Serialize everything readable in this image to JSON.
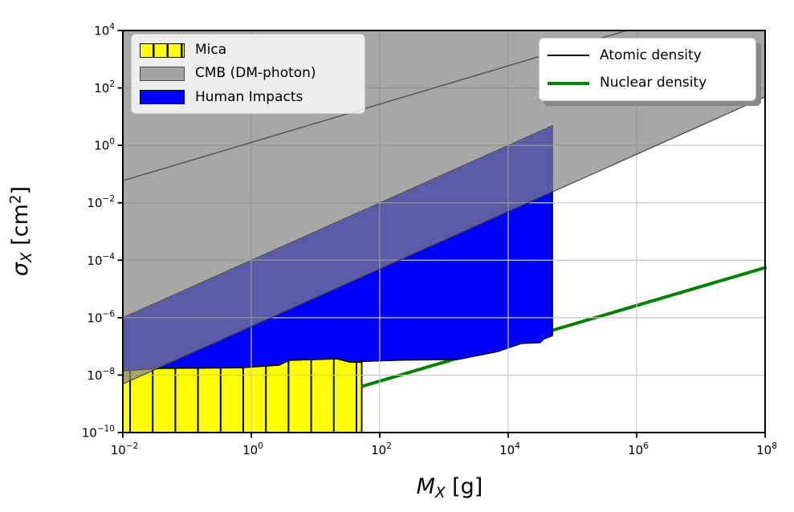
{
  "chart_data": {
    "type": "area",
    "title": "",
    "xlabel": {
      "var": "M",
      "sub": "X",
      "unit": "[g]"
    },
    "ylabel": {
      "var": "σ",
      "sub": "X",
      "unit_pre": "[cm",
      "unit_exp": "2",
      "unit_post": "]"
    },
    "x_axis": {
      "scale": "log",
      "base_label": "10",
      "range_exponents": [
        -2,
        8
      ],
      "tick_exponents": [
        -2,
        0,
        2,
        4,
        6,
        8
      ]
    },
    "y_axis": {
      "scale": "log",
      "base_label": "10",
      "range_exponents": [
        -10,
        4
      ],
      "tick_exponents": [
        4,
        2,
        0,
        -2,
        -4,
        -6,
        -8,
        -10
      ]
    },
    "grid": {
      "show": true,
      "color": "#c6c6c6",
      "x_exponents": [
        0,
        2,
        4,
        6
      ],
      "y_exponents": [
        2,
        0,
        -2,
        -4,
        -6,
        -8
      ]
    },
    "regions": [
      {
        "name": "Mica",
        "fill": "#ffff00",
        "stroke": "#000000",
        "stroke_width": 1.8,
        "hatch": "vertical",
        "hatch_color": "#000000",
        "hatch_spacing_px": 28.2,
        "hatch_line_width": 2,
        "points_log": [
          [
            -2,
            -10
          ],
          [
            -2,
            -7.85
          ],
          [
            -1.41,
            -7.76
          ],
          [
            -0.16,
            -7.74
          ],
          [
            0.43,
            -7.65
          ],
          [
            0.59,
            -7.48
          ],
          [
            1.34,
            -7.43
          ],
          [
            1.53,
            -7.54
          ],
          [
            1.72,
            -7.55
          ],
          [
            1.72,
            -10
          ]
        ]
      },
      {
        "name": "Human Impacts",
        "fill": "#0000ff",
        "stroke": "#000000",
        "stroke_width": 1.3,
        "points_log": [
          [
            -2,
            -6
          ],
          [
            4.69,
            0.69
          ],
          [
            4.69,
            -6.63
          ],
          [
            4.55,
            -6.75
          ],
          [
            4.5,
            -6.87
          ],
          [
            4.2,
            -6.9
          ],
          [
            3.84,
            -7.18
          ],
          [
            3.21,
            -7.46
          ],
          [
            2.34,
            -7.48
          ],
          [
            1.53,
            -7.54
          ],
          [
            1.34,
            -7.43
          ],
          [
            0.59,
            -7.48
          ],
          [
            0.43,
            -7.65
          ],
          [
            -0.16,
            -7.74
          ],
          [
            -1.41,
            -7.76
          ],
          [
            -2,
            -7.85
          ]
        ]
      },
      {
        "name": "CMB (DM-photon)",
        "fill": "#828282",
        "fill_opacity": 0.7,
        "stroke": "#2e2e2e",
        "stroke_opacity": 0.7,
        "stroke_width": 1.5,
        "points_log": [
          [
            -2,
            -8.31
          ],
          [
            8,
            1.69
          ],
          [
            8,
            4
          ],
          [
            -2,
            4
          ]
        ]
      }
    ],
    "lines": [
      {
        "name": "Atomic density",
        "color": "#000000",
        "width": 1.6,
        "points_log": [
          [
            -2,
            -1.23
          ],
          [
            5.845,
            4
          ]
        ]
      },
      {
        "name": "Nuclear density",
        "color": "#008000",
        "width": 4,
        "points_log": [
          [
            1.74,
            -8.38
          ],
          [
            8,
            -4.26
          ]
        ]
      }
    ],
    "legend_position_left": "upper left",
    "legend_position_right": "upper right"
  },
  "legend_left": {
    "items": [
      {
        "label": "Mica",
        "swatch": "mica-hatched-yellow"
      },
      {
        "label": "CMB (DM-photon)",
        "swatch": "gray"
      },
      {
        "label": "Human Impacts",
        "swatch": "blue"
      }
    ]
  },
  "legend_right": {
    "items": [
      {
        "label": "Atomic density",
        "line_color": "#000000"
      },
      {
        "label": "Nuclear density",
        "line_color": "#008000"
      }
    ]
  }
}
